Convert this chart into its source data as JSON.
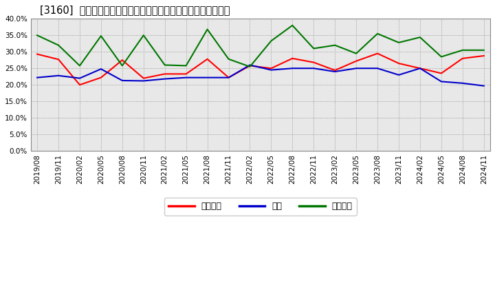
{
  "title": "[3160]  売上債権、在庫、買入債務の総資産に対する比率の推移",
  "dates": [
    "2019/08",
    "2019/11",
    "2020/02",
    "2020/05",
    "2020/08",
    "2020/11",
    "2021/02",
    "2021/05",
    "2021/08",
    "2021/11",
    "2022/02",
    "2022/05",
    "2022/08",
    "2022/11",
    "2023/02",
    "2023/05",
    "2023/08",
    "2023/11",
    "2024/02",
    "2024/05",
    "2024/08",
    "2024/11"
  ],
  "urikake": [
    0.293,
    0.277,
    0.2,
    0.222,
    0.275,
    0.22,
    0.233,
    0.233,
    0.278,
    0.222,
    0.258,
    0.25,
    0.28,
    0.268,
    0.244,
    0.272,
    0.295,
    0.265,
    0.25,
    0.235,
    0.28,
    0.288
  ],
  "zaiko": [
    0.222,
    0.228,
    0.22,
    0.248,
    0.213,
    0.212,
    0.218,
    0.222,
    0.222,
    0.222,
    0.26,
    0.245,
    0.25,
    0.25,
    0.24,
    0.25,
    0.25,
    0.23,
    0.25,
    0.21,
    0.205,
    0.197
  ],
  "kaiire": [
    0.35,
    0.32,
    0.258,
    0.348,
    0.258,
    0.35,
    0.26,
    0.258,
    0.368,
    0.278,
    0.255,
    0.333,
    0.38,
    0.31,
    0.32,
    0.295,
    0.355,
    0.328,
    0.344,
    0.285,
    0.305,
    0.305
  ],
  "urikake_color": "#ff0000",
  "zaiko_color": "#0000cc",
  "kaiire_color": "#007700",
  "bg_color": "#ffffff",
  "plot_bg_color": "#e8e8e8",
  "grid_color": "#888888",
  "ylim": [
    0.0,
    0.4
  ],
  "yticks": [
    0.0,
    0.05,
    0.1,
    0.15,
    0.2,
    0.25,
    0.3,
    0.35,
    0.4
  ],
  "legend_labels": [
    "売上債権",
    "在庫",
    "買入債務"
  ]
}
